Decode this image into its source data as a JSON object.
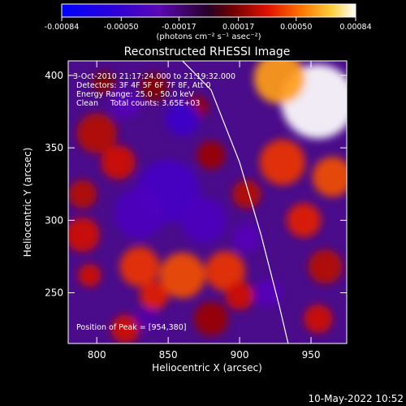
{
  "chart_data": {
    "type": "heatmap",
    "title": "Reconstructed RHESSI Image",
    "xlabel": "Heliocentric X (arcsec)",
    "ylabel": "Heliocentric Y (arcsec)",
    "xlim": [
      780,
      975
    ],
    "ylim": [
      215,
      410
    ],
    "xticks": [
      800,
      850,
      900,
      950
    ],
    "yticks": [
      250,
      300,
      350,
      400
    ],
    "grid": false,
    "colorbar": {
      "min": -0.00084,
      "max": 0.00084,
      "tick_labels": [
        "-0.00084",
        "-0.00050",
        "-0.00017",
        "0.00017",
        "0.00050",
        "0.00084"
      ],
      "tick_values": [
        -0.00084,
        -0.0005,
        -0.00017,
        0.00017,
        0.0005,
        0.00084
      ],
      "unit_label": "(photons cm⁻² s⁻¹ asec⁻²)"
    },
    "annotations": [
      "3-Oct-2010 21:17:24.000 to 21:19:32.000",
      "Detectors: 3F 4F 5F 6F 7F 8F, Att 0",
      "Energy Range: 25.0 - 50.0 keV",
      "Clean     Total counts: 3.65E+03"
    ],
    "peak_label": "Position of Peak = [954,380]",
    "peak": [
      954,
      380
    ],
    "limb": [
      [
        860,
        410
      ],
      [
        880,
        390
      ],
      [
        900,
        340
      ],
      [
        915,
        290
      ],
      [
        928,
        240
      ],
      [
        934,
        215
      ]
    ],
    "blobs": [
      {
        "x": 955,
        "y": 382,
        "r": 26,
        "v": 0.00084
      },
      {
        "x": 928,
        "y": 398,
        "r": 18,
        "v": 0.00065
      },
      {
        "x": 965,
        "y": 330,
        "r": 14,
        "v": 0.0005
      },
      {
        "x": 930,
        "y": 340,
        "r": 16,
        "v": 0.00045
      },
      {
        "x": 945,
        "y": 300,
        "r": 12,
        "v": 0.0004
      },
      {
        "x": 960,
        "y": 268,
        "r": 12,
        "v": 0.0003
      },
      {
        "x": 955,
        "y": 232,
        "r": 10,
        "v": 0.00035
      },
      {
        "x": 905,
        "y": 318,
        "r": 10,
        "v": 0.0003
      },
      {
        "x": 880,
        "y": 345,
        "r": 10,
        "v": 0.00025
      },
      {
        "x": 800,
        "y": 360,
        "r": 14,
        "v": 0.0003
      },
      {
        "x": 815,
        "y": 340,
        "r": 12,
        "v": 0.00035
      },
      {
        "x": 790,
        "y": 318,
        "r": 10,
        "v": 0.0003
      },
      {
        "x": 790,
        "y": 290,
        "r": 12,
        "v": 0.00035
      },
      {
        "x": 830,
        "y": 268,
        "r": 14,
        "v": 0.00045
      },
      {
        "x": 860,
        "y": 262,
        "r": 16,
        "v": 0.0005
      },
      {
        "x": 890,
        "y": 265,
        "r": 14,
        "v": 0.00045
      },
      {
        "x": 840,
        "y": 248,
        "r": 10,
        "v": 0.0004
      },
      {
        "x": 795,
        "y": 262,
        "r": 8,
        "v": 0.00035
      },
      {
        "x": 820,
        "y": 225,
        "r": 10,
        "v": 0.00035
      },
      {
        "x": 880,
        "y": 232,
        "r": 12,
        "v": 0.00025
      },
      {
        "x": 900,
        "y": 248,
        "r": 10,
        "v": 0.00035
      },
      {
        "x": 840,
        "y": 392,
        "r": 10,
        "v": 0.0002
      },
      {
        "x": 870,
        "y": 378,
        "r": 8,
        "v": 0.00025
      },
      {
        "x": 805,
        "y": 395,
        "r": 8,
        "v": 0.0002
      },
      {
        "x": 850,
        "y": 320,
        "r": 22,
        "v": -0.0004
      },
      {
        "x": 830,
        "y": 305,
        "r": 18,
        "v": -0.00035
      },
      {
        "x": 875,
        "y": 300,
        "r": 16,
        "v": -0.00035
      },
      {
        "x": 860,
        "y": 370,
        "r": 12,
        "v": -0.00045
      },
      {
        "x": 905,
        "y": 288,
        "r": 10,
        "v": -0.0003
      },
      {
        "x": 920,
        "y": 250,
        "r": 10,
        "v": -0.0003
      },
      {
        "x": 820,
        "y": 380,
        "r": 10,
        "v": -0.0003
      },
      {
        "x": 835,
        "y": 232,
        "r": 8,
        "v": -0.00025
      }
    ]
  },
  "footer": {
    "date": "10-May-2022 10:52"
  }
}
